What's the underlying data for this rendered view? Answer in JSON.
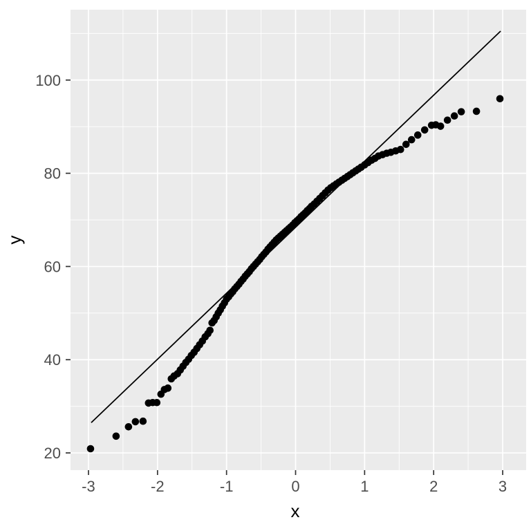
{
  "chart_data": {
    "type": "scatter",
    "title": "",
    "xlabel": "x",
    "ylabel": "y",
    "legend": "none",
    "grid": "on",
    "panel_bg": "#ebebeb",
    "grid_color": "#ffffff",
    "point_color": "#000000",
    "ref_line_color": "#000000",
    "tick_label_color": "#4d4d4d",
    "axis_title_color": "#000000",
    "xlim": [
      -3.26,
      3.34
    ],
    "ylim": [
      16.3,
      115.1
    ],
    "x_major_ticks": [
      -3,
      -2,
      -1,
      0,
      1,
      2,
      3
    ],
    "x_minor_ticks": [
      -2.5,
      -1.5,
      -0.5,
      0.5,
      1.5,
      2.5
    ],
    "y_major_ticks": [
      20,
      40,
      60,
      80,
      100
    ],
    "y_minor_ticks": [
      30,
      50,
      70,
      90,
      110
    ],
    "x_tick_labels": [
      "-3",
      "-2",
      "-1",
      "0",
      "1",
      "2",
      "3"
    ],
    "y_tick_labels": [
      "20",
      "40",
      "60",
      "80",
      "100"
    ],
    "ref_line": {
      "x1": -2.96,
      "y1": 26.5,
      "x2": 2.97,
      "y2": 110.5
    },
    "points": [
      [
        -2.97,
        20.9
      ],
      [
        -2.6,
        23.6
      ],
      [
        -2.42,
        25.6
      ],
      [
        -2.32,
        26.7
      ],
      [
        -2.21,
        26.8
      ],
      [
        -2.13,
        30.7
      ],
      [
        -2.07,
        30.8
      ],
      [
        -2.01,
        30.8
      ],
      [
        -1.95,
        32.6
      ],
      [
        -1.9,
        33.6
      ],
      [
        -1.85,
        33.9
      ],
      [
        -1.8,
        35.9
      ],
      [
        -1.76,
        36.5
      ],
      [
        -1.71,
        37.0
      ],
      [
        -1.67,
        37.8
      ],
      [
        -1.63,
        38.6
      ],
      [
        -1.59,
        39.4
      ],
      [
        -1.55,
        40.1
      ],
      [
        -1.51,
        40.9
      ],
      [
        -1.47,
        41.6
      ],
      [
        -1.43,
        42.4
      ],
      [
        -1.39,
        43.2
      ],
      [
        -1.35,
        44.0
      ],
      [
        -1.31,
        44.9
      ],
      [
        -1.27,
        45.6
      ],
      [
        -1.24,
        46.3
      ],
      [
        -1.21,
        47.9
      ],
      [
        -1.18,
        48.4
      ],
      [
        -1.15,
        49.2
      ],
      [
        -1.12,
        50.0
      ],
      [
        -1.09,
        50.7
      ],
      [
        -1.06,
        51.5
      ],
      [
        -1.03,
        52.2
      ],
      [
        -1.0,
        53.0
      ],
      [
        -0.97,
        53.5
      ],
      [
        -0.94,
        54.1
      ],
      [
        -0.91,
        54.6
      ],
      [
        -0.88,
        55.2
      ],
      [
        -0.85,
        55.7
      ],
      [
        -0.82,
        56.2
      ],
      [
        -0.79,
        56.8
      ],
      [
        -0.76,
        57.3
      ],
      [
        -0.73,
        57.9
      ],
      [
        -0.7,
        58.4
      ],
      [
        -0.67,
        58.9
      ],
      [
        -0.64,
        59.5
      ],
      [
        -0.61,
        60.0
      ],
      [
        -0.58,
        60.5
      ],
      [
        -0.55,
        61.0
      ],
      [
        -0.52,
        61.5
      ],
      [
        -0.49,
        62.1
      ],
      [
        -0.46,
        62.6
      ],
      [
        -0.43,
        63.1
      ],
      [
        -0.4,
        63.7
      ],
      [
        -0.37,
        64.2
      ],
      [
        -0.34,
        64.7
      ],
      [
        -0.31,
        65.2
      ],
      [
        -0.28,
        65.7
      ],
      [
        -0.25,
        66.1
      ],
      [
        -0.22,
        66.5
      ],
      [
        -0.19,
        66.9
      ],
      [
        -0.16,
        67.3
      ],
      [
        -0.13,
        67.7
      ],
      [
        -0.1,
        68.1
      ],
      [
        -0.07,
        68.5
      ],
      [
        -0.04,
        68.9
      ],
      [
        -0.01,
        69.4
      ],
      [
        0.02,
        69.8
      ],
      [
        0.05,
        70.2
      ],
      [
        0.08,
        70.7
      ],
      [
        0.11,
        71.1
      ],
      [
        0.14,
        71.5
      ],
      [
        0.17,
        72.0
      ],
      [
        0.2,
        72.4
      ],
      [
        0.23,
        72.9
      ],
      [
        0.27,
        73.4
      ],
      [
        0.31,
        74.0
      ],
      [
        0.35,
        74.6
      ],
      [
        0.39,
        75.2
      ],
      [
        0.43,
        75.8
      ],
      [
        0.47,
        76.4
      ],
      [
        0.51,
        76.9
      ],
      [
        0.55,
        77.3
      ],
      [
        0.59,
        77.7
      ],
      [
        0.63,
        78.1
      ],
      [
        0.67,
        78.5
      ],
      [
        0.71,
        78.9
      ],
      [
        0.75,
        79.3
      ],
      [
        0.79,
        79.7
      ],
      [
        0.83,
        80.1
      ],
      [
        0.87,
        80.5
      ],
      [
        0.91,
        80.9
      ],
      [
        0.95,
        81.3
      ],
      [
        1.0,
        81.8
      ],
      [
        1.05,
        82.3
      ],
      [
        1.1,
        82.8
      ],
      [
        1.15,
        83.2
      ],
      [
        1.2,
        83.7
      ],
      [
        1.26,
        84.0
      ],
      [
        1.32,
        84.3
      ],
      [
        1.38,
        84.5
      ],
      [
        1.45,
        84.8
      ],
      [
        1.52,
        85.1
      ],
      [
        1.6,
        86.2
      ],
      [
        1.68,
        87.2
      ],
      [
        1.77,
        88.2
      ],
      [
        1.87,
        89.3
      ],
      [
        1.97,
        90.3
      ],
      [
        2.03,
        90.4
      ],
      [
        2.1,
        90.1
      ],
      [
        2.2,
        91.4
      ],
      [
        2.3,
        92.3
      ],
      [
        2.4,
        93.2
      ],
      [
        2.62,
        93.3
      ],
      [
        2.96,
        96.0
      ]
    ]
  }
}
